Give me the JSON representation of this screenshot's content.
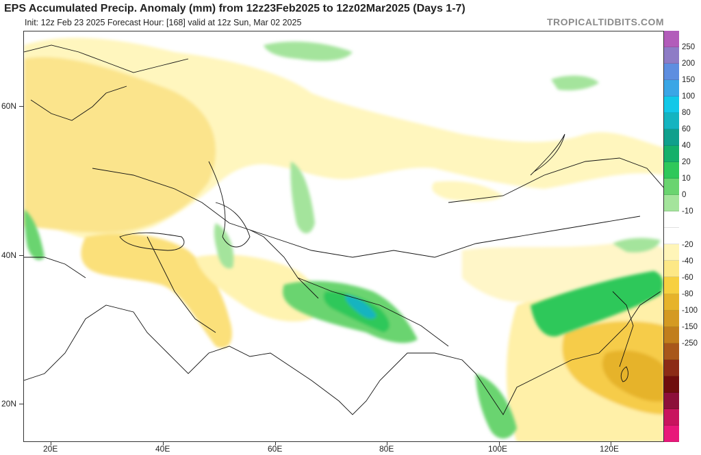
{
  "header": {
    "title": "EPS Accumulated Precip. Anomaly (mm) from 12z23Feb2025 to 12z02Mar2025 (Days 1-7)",
    "subtitle": "Init: 12z Feb 23 2025   Forecast Hour: [168]   valid at 12z Sun, Mar 02 2025",
    "brand": "TROPICALTIDBITS.COM"
  },
  "axes": {
    "lat_labels": [
      "60N",
      "40N",
      "20N"
    ],
    "lon_labels": [
      "20E",
      "40E",
      "60E",
      "80E",
      "100E",
      "120E"
    ]
  },
  "colorbar": {
    "labels": [
      "250",
      "200",
      "150",
      "100",
      "80",
      "60",
      "40",
      "20",
      "10",
      "0",
      "-10",
      "-20",
      "-40",
      "-60",
      "-80",
      "-100",
      "-150",
      "-250"
    ],
    "colors": [
      "#b25cba",
      "#8e7cc6",
      "#5e8ee0",
      "#3aa6e6",
      "#12c8e8",
      "#14b4c0",
      "#0fa08c",
      "#14b06a",
      "#2ec85a",
      "#6ad470",
      "#a4e49c",
      "#ffffff",
      "#ffffff",
      "#fff5b8",
      "#fde886",
      "#f7d040",
      "#e6b32a",
      "#d49a22",
      "#c17e1c",
      "#a8571a",
      "#8c2b16",
      "#6f0d0d",
      "#8c0f3a",
      "#c8145e",
      "#e8187a"
    ]
  }
}
